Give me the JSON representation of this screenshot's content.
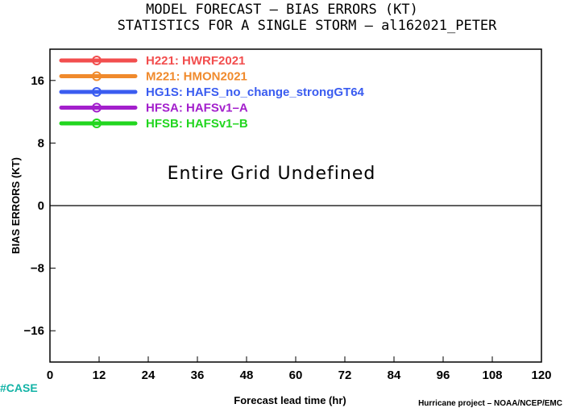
{
  "chart_data": {
    "type": "line",
    "title": "MODEL FORECAST – BIAS ERRORS (KT)",
    "subtitle": "STATISTICS FOR A SINGLE STORM – al162021_PETER",
    "xlabel": "Forecast lead time (hr)",
    "ylabel": "BIAS ERRORS (KT)",
    "xlim": [
      0,
      120
    ],
    "ylim": [
      -20,
      20
    ],
    "xticks": [
      "0",
      "12",
      "24",
      "36",
      "48",
      "60",
      "72",
      "84",
      "96",
      "108",
      "120"
    ],
    "yticks": [
      "16",
      "8",
      "0",
      "−8",
      "−16"
    ],
    "ytick_values": [
      16,
      8,
      0,
      -8,
      -16
    ],
    "xtick_values": [
      0,
      12,
      24,
      36,
      48,
      60,
      72,
      84,
      96,
      108,
      120
    ],
    "zero_line": 0,
    "grid": false,
    "legend_position": "top-left",
    "annotation": "Entire Grid Undefined",
    "series": [
      {
        "name": "H221:  HWRF2021",
        "color": "#f24e4e",
        "values": []
      },
      {
        "name": "M221:  HMON2021",
        "color": "#f08a2c",
        "values": []
      },
      {
        "name": "HG1S:  HAFS_no_change_strongGT64",
        "color": "#3a5cf0",
        "values": []
      },
      {
        "name": "HFSA:  HAFSv1–A",
        "color": "#a31fcc",
        "values": []
      },
      {
        "name": "HFSB:  HAFSv1–B",
        "color": "#22d61f",
        "values": []
      }
    ]
  },
  "footer": {
    "case_label": "#CASE",
    "credit": "Hurricane project – NOAA/NCEP/EMC"
  }
}
